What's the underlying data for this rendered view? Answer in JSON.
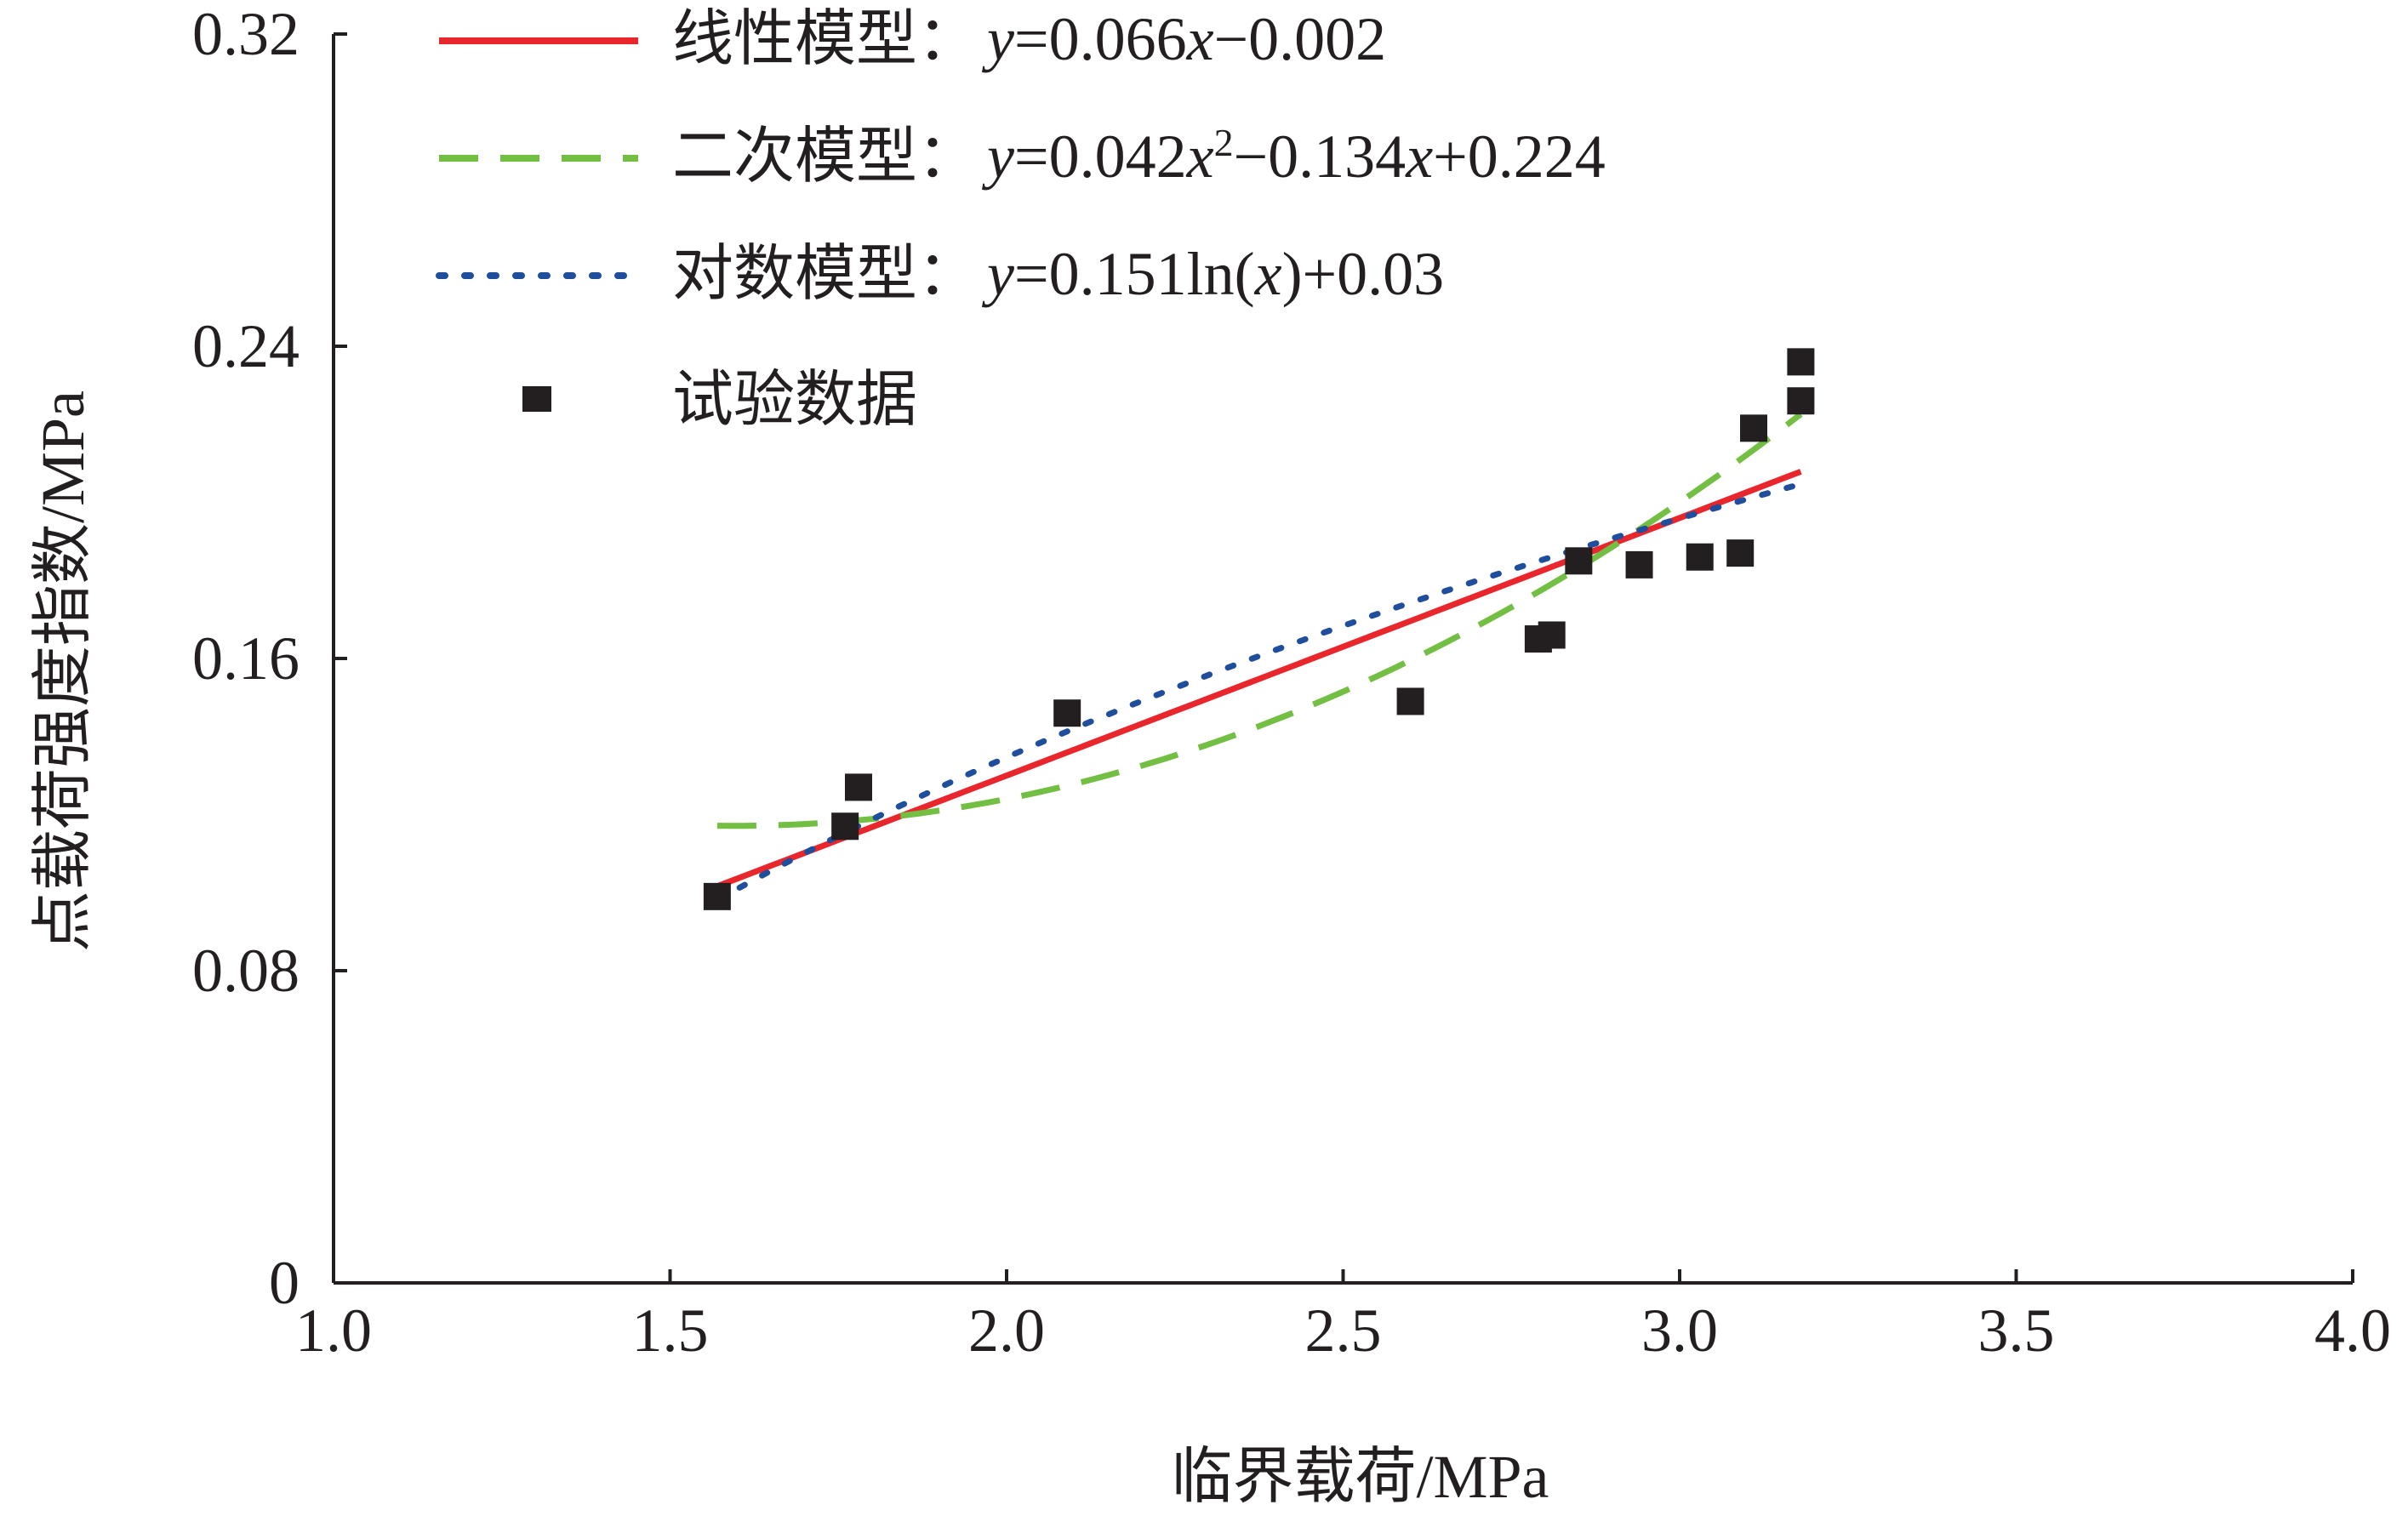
{
  "chart_data": {
    "type": "scatter",
    "xlabel": "临界载荷/MPa",
    "ylabel": "点载荷强度指数/MPa",
    "xlim": [
      1.0,
      4.0
    ],
    "ylim": [
      0,
      0.32
    ],
    "x_ticks": [
      "1.0",
      "1.5",
      "2.0",
      "2.5",
      "3.0",
      "3.5",
      "4.0"
    ],
    "y_ticks": [
      "0",
      "0.08",
      "0.16",
      "0.24",
      "0.32"
    ],
    "grid": false,
    "legend_position": "top-left",
    "series": [
      {
        "name": "线性模型",
        "kind": "line",
        "style": "solid",
        "color": "#e8262b",
        "equation": "y=0.066x−0.002",
        "x_range": [
          1.57,
          3.18
        ]
      },
      {
        "name": "二次模型",
        "kind": "line",
        "style": "dashed",
        "color": "#72bf44",
        "equation": "y=0.042x²−0.134x+0.224",
        "x_range": [
          1.57,
          3.18
        ]
      },
      {
        "name": "对数模型",
        "kind": "line",
        "style": "dotted",
        "color": "#1f4e9c",
        "equation": "y=0.151ln(x)+0.03",
        "x_range": [
          1.57,
          3.18
        ]
      },
      {
        "name": "试验数据",
        "kind": "scatter",
        "marker": "square",
        "color": "#231f20",
        "points": [
          {
            "x": 1.57,
            "y": 0.099
          },
          {
            "x": 1.76,
            "y": 0.117
          },
          {
            "x": 1.78,
            "y": 0.127
          },
          {
            "x": 2.09,
            "y": 0.146
          },
          {
            "x": 2.6,
            "y": 0.149
          },
          {
            "x": 2.79,
            "y": 0.165
          },
          {
            "x": 2.81,
            "y": 0.166
          },
          {
            "x": 2.85,
            "y": 0.185
          },
          {
            "x": 2.94,
            "y": 0.184
          },
          {
            "x": 3.03,
            "y": 0.186
          },
          {
            "x": 3.09,
            "y": 0.187
          },
          {
            "x": 3.11,
            "y": 0.219
          },
          {
            "x": 3.18,
            "y": 0.226
          },
          {
            "x": 3.18,
            "y": 0.236
          }
        ]
      }
    ]
  },
  "legend": [
    {
      "name": "线性模型",
      "sep": "：",
      "formula": [
        [
          "i",
          "y"
        ],
        [
          "n",
          "=0.066"
        ],
        [
          "i",
          "x"
        ],
        [
          "n",
          "−0.002"
        ]
      ]
    },
    {
      "name": "二次模型",
      "sep": "：",
      "formula": [
        [
          "i",
          "y"
        ],
        [
          "n",
          "=0.042"
        ],
        [
          "i",
          "x"
        ],
        [
          "s",
          "2"
        ],
        [
          "n",
          "−0.134"
        ],
        [
          "i",
          "x"
        ],
        [
          "n",
          "+0.224"
        ]
      ]
    },
    {
      "name": "对数模型",
      "sep": "：",
      "formula": [
        [
          "i",
          "y"
        ],
        [
          "n",
          "=0.151ln("
        ],
        [
          "i",
          "x"
        ],
        [
          "n",
          ")+0.03"
        ]
      ]
    },
    {
      "name": "试验数据",
      "sep": "",
      "formula": []
    }
  ]
}
